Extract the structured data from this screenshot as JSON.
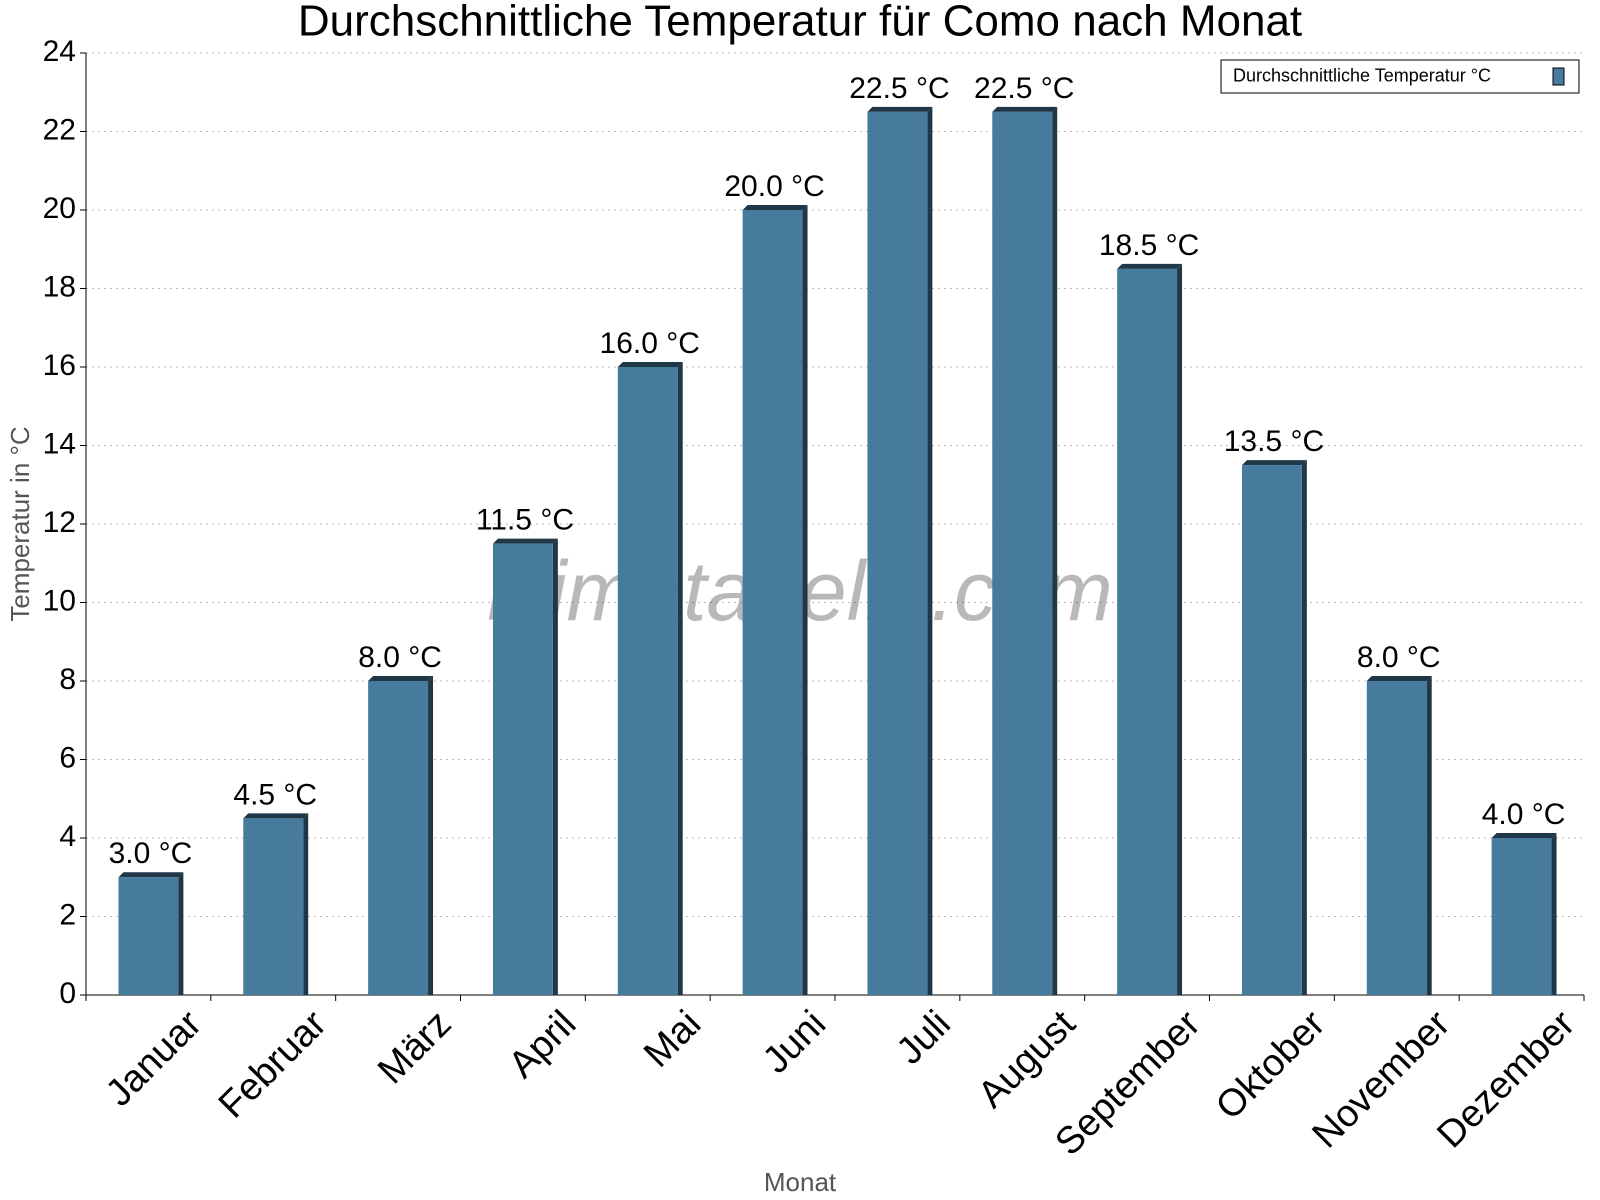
{
  "chart_data": {
    "type": "bar",
    "title": "Durchschnittliche Temperatur für Como nach Monat",
    "categories": [
      "Januar",
      "Februar",
      "März",
      "April",
      "Mai",
      "Juni",
      "Juli",
      "August",
      "September",
      "Oktober",
      "November",
      "Dezember"
    ],
    "series": [
      {
        "name": "Durchschnittliche Temperatur °C",
        "color": "#467b9d",
        "values": [
          3.0,
          4.5,
          8.0,
          11.5,
          16.0,
          20.0,
          22.5,
          22.5,
          18.5,
          13.5,
          8.0,
          4.0
        ],
        "value_labels": [
          "3.0 °C",
          "4.5 °C",
          "8.0 °C",
          "11.5 °C",
          "16.0 °C",
          "20.0 °C",
          "22.5 °C",
          "22.5 °C",
          "18.5 °C",
          "13.5 °C",
          "8.0 °C",
          "4.0 °C"
        ]
      }
    ],
    "ylabel": "Temperatur in °C",
    "xlabel": "Monat",
    "watermark": "klimatabelle.com",
    "ylim": [
      0,
      24
    ],
    "yticks": [
      0,
      2,
      4,
      6,
      8,
      10,
      12,
      14,
      16,
      18,
      20,
      22,
      24
    ],
    "grid": true,
    "legend": "upper right"
  }
}
